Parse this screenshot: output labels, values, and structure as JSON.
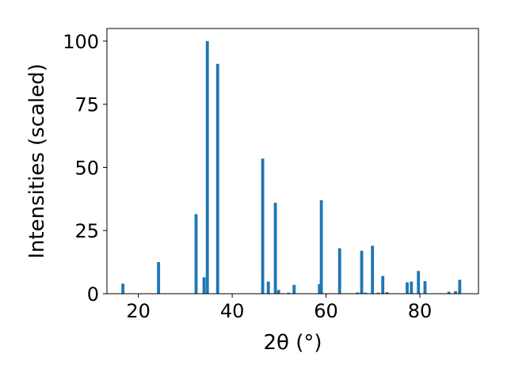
{
  "chart_data": {
    "type": "bar",
    "xlabel": "2θ (°)",
    "ylabel": "Intensities (scaled)",
    "xlim": [
      13.3,
      92.5
    ],
    "ylim": [
      0,
      105
    ],
    "xticks": [
      20,
      40,
      60,
      80
    ],
    "yticks": [
      0,
      25,
      50,
      75,
      100
    ],
    "xtick_labels": [
      "20",
      "40",
      "60",
      "80"
    ],
    "ytick_labels": [
      "0",
      "25",
      "50",
      "75",
      "100"
    ],
    "bar_width": 0.65,
    "bar_color": "#1f77b4",
    "grid": false,
    "x": [
      16.7,
      24.3,
      32.3,
      34.0,
      34.7,
      36.9,
      46.5,
      47.7,
      49.2,
      49.9,
      52.0,
      53.2,
      58.6,
      59.0,
      62.9,
      66.7,
      67.6,
      68.4,
      69.9,
      71.1,
      72.1,
      73.0,
      77.3,
      78.2,
      79.7,
      81.1,
      86.2,
      87.6,
      88.5
    ],
    "values": [
      4.0,
      12.5,
      31.5,
      6.5,
      100.0,
      91.0,
      53.5,
      4.8,
      36.0,
      1.5,
      0.4,
      3.5,
      3.8,
      37.0,
      18.0,
      0.5,
      17.0,
      0.4,
      19.0,
      0.4,
      7.0,
      0.6,
      4.5,
      4.8,
      9.0,
      5.0,
      0.8,
      1.0,
      5.5
    ]
  }
}
